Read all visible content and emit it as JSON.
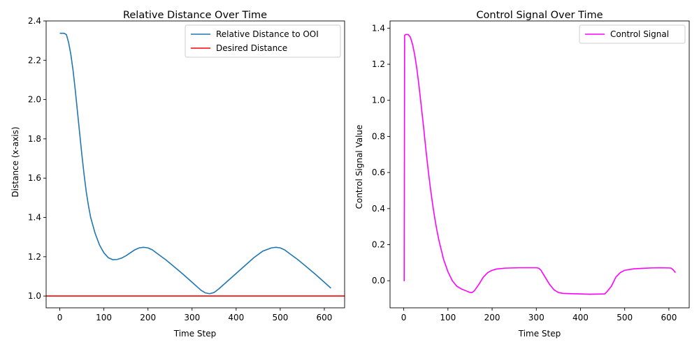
{
  "chart_data": [
    {
      "type": "line",
      "title": "Relative Distance Over Time",
      "xlabel": "Time Step",
      "ylabel": "Distance (x-axis)",
      "xlim": [
        -31,
        646
      ],
      "ylim": [
        0.94,
        2.4
      ],
      "xticks": [
        0,
        100,
        200,
        300,
        400,
        500,
        600
      ],
      "yticks": [
        1.0,
        1.2,
        1.4,
        1.6,
        1.8,
        2.0,
        2.2,
        2.4
      ],
      "xtick_labels": [
        "0",
        "100",
        "200",
        "300",
        "400",
        "500",
        "600"
      ],
      "ytick_labels": [
        "1.0",
        "1.2",
        "1.4",
        "1.6",
        "1.8",
        "2.0",
        "2.2",
        "2.4"
      ],
      "grid": false,
      "legend_position": "top-right",
      "series": [
        {
          "name": "Relative Distance to OOI",
          "color": "#1f77b4",
          "kind": "line",
          "points": [
            [
              0,
              2.337
            ],
            [
              10,
              2.337
            ],
            [
              15,
              2.33
            ],
            [
              20,
              2.29
            ],
            [
              25,
              2.23
            ],
            [
              30,
              2.15
            ],
            [
              35,
              2.05
            ],
            [
              40,
              1.94
            ],
            [
              45,
              1.83
            ],
            [
              50,
              1.72
            ],
            [
              55,
              1.62
            ],
            [
              60,
              1.53
            ],
            [
              65,
              1.46
            ],
            [
              70,
              1.4
            ],
            [
              80,
              1.32
            ],
            [
              90,
              1.26
            ],
            [
              100,
              1.22
            ],
            [
              110,
              1.195
            ],
            [
              120,
              1.185
            ],
            [
              130,
              1.186
            ],
            [
              140,
              1.193
            ],
            [
              150,
              1.205
            ],
            [
              160,
              1.22
            ],
            [
              170,
              1.235
            ],
            [
              180,
              1.245
            ],
            [
              190,
              1.248
            ],
            [
              200,
              1.245
            ],
            [
              210,
              1.235
            ],
            [
              220,
              1.218
            ],
            [
              240,
              1.185
            ],
            [
              260,
              1.148
            ],
            [
              280,
              1.11
            ],
            [
              300,
              1.07
            ],
            [
              320,
              1.03
            ],
            [
              330,
              1.016
            ],
            [
              340,
              1.012
            ],
            [
              350,
              1.018
            ],
            [
              360,
              1.035
            ],
            [
              380,
              1.075
            ],
            [
              400,
              1.115
            ],
            [
              420,
              1.155
            ],
            [
              440,
              1.195
            ],
            [
              460,
              1.228
            ],
            [
              480,
              1.245
            ],
            [
              490,
              1.248
            ],
            [
              500,
              1.245
            ],
            [
              510,
              1.235
            ],
            [
              520,
              1.218
            ],
            [
              540,
              1.185
            ],
            [
              560,
              1.148
            ],
            [
              580,
              1.11
            ],
            [
              600,
              1.07
            ],
            [
              615,
              1.04
            ]
          ]
        },
        {
          "name": "Desired Distance",
          "color": "#ff0000",
          "kind": "hline",
          "y": 1.0
        }
      ]
    },
    {
      "type": "line",
      "title": "Control Signal Over Time",
      "xlabel": "Time Step",
      "ylabel": "Control Signal Value",
      "xlim": [
        -31,
        646
      ],
      "ylim": [
        -0.15,
        1.44
      ],
      "xticks": [
        0,
        100,
        200,
        300,
        400,
        500,
        600
      ],
      "yticks": [
        0.0,
        0.2,
        0.4,
        0.6,
        0.8,
        1.0,
        1.2,
        1.4
      ],
      "xtick_labels": [
        "0",
        "100",
        "200",
        "300",
        "400",
        "500",
        "600"
      ],
      "ytick_labels": [
        "0.0",
        "0.2",
        "0.4",
        "0.6",
        "0.8",
        "1.0",
        "1.2",
        "1.4"
      ],
      "grid": false,
      "legend_position": "top-right",
      "series": [
        {
          "name": "Control Signal",
          "color": "#ff00ff",
          "kind": "line",
          "points": [
            [
              0,
              0.0
            ],
            [
              1,
              0.0
            ],
            [
              2,
              1.36
            ],
            [
              5,
              1.365
            ],
            [
              10,
              1.365
            ],
            [
              15,
              1.35
            ],
            [
              20,
              1.31
            ],
            [
              25,
              1.25
            ],
            [
              30,
              1.17
            ],
            [
              35,
              1.07
            ],
            [
              40,
              0.96
            ],
            [
              45,
              0.85
            ],
            [
              50,
              0.73
            ],
            [
              55,
              0.62
            ],
            [
              60,
              0.52
            ],
            [
              65,
              0.43
            ],
            [
              70,
              0.35
            ],
            [
              75,
              0.28
            ],
            [
              80,
              0.22
            ],
            [
              90,
              0.12
            ],
            [
              100,
              0.05
            ],
            [
              110,
              0.0
            ],
            [
              120,
              -0.03
            ],
            [
              130,
              -0.045
            ],
            [
              140,
              -0.055
            ],
            [
              150,
              -0.065
            ],
            [
              155,
              -0.065
            ],
            [
              160,
              -0.055
            ],
            [
              170,
              -0.02
            ],
            [
              180,
              0.02
            ],
            [
              190,
              0.045
            ],
            [
              200,
              0.058
            ],
            [
              210,
              0.065
            ],
            [
              230,
              0.07
            ],
            [
              260,
              0.072
            ],
            [
              280,
              0.072
            ],
            [
              300,
              0.072
            ],
            [
              305,
              0.07
            ],
            [
              310,
              0.06
            ],
            [
              320,
              0.02
            ],
            [
              330,
              -0.02
            ],
            [
              340,
              -0.05
            ],
            [
              350,
              -0.065
            ],
            [
              360,
              -0.07
            ],
            [
              380,
              -0.072
            ],
            [
              400,
              -0.073
            ],
            [
              420,
              -0.075
            ],
            [
              440,
              -0.074
            ],
            [
              455,
              -0.073
            ],
            [
              460,
              -0.06
            ],
            [
              470,
              -0.03
            ],
            [
              480,
              0.02
            ],
            [
              490,
              0.045
            ],
            [
              500,
              0.058
            ],
            [
              520,
              0.066
            ],
            [
              540,
              0.069
            ],
            [
              560,
              0.071
            ],
            [
              580,
              0.072
            ],
            [
              600,
              0.071
            ],
            [
              605,
              0.07
            ],
            [
              610,
              0.06
            ],
            [
              615,
              0.045
            ]
          ]
        }
      ]
    }
  ]
}
